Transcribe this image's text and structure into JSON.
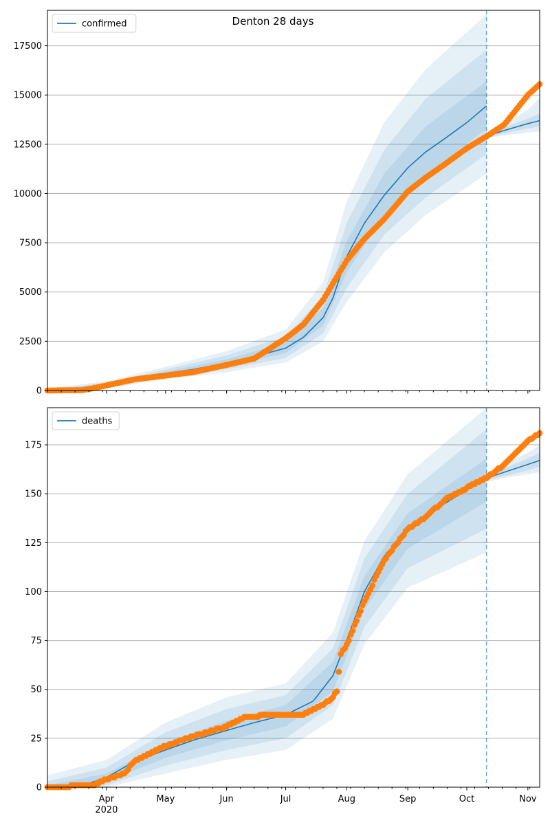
{
  "title": "Denton 28 days",
  "colors": {
    "model": "#1f77b4",
    "observed": "#ff7f0e",
    "band": "#1f77b4",
    "grid": "#b0b0b0"
  },
  "chart_data": [
    {
      "type": "line",
      "panel": "confirmed",
      "legend": "confirmed",
      "legend_position": "top-left",
      "x_axis": "date",
      "xlim": [
        "2020-03-02",
        "2020-11-07"
      ],
      "forecast_start": "2020-10-11",
      "month_ticks": [
        {
          "date": "2020-04-01",
          "label": "Apr",
          "sublabel": "2020"
        },
        {
          "date": "2020-05-01",
          "label": "May"
        },
        {
          "date": "2020-06-01",
          "label": "Jun"
        },
        {
          "date": "2020-07-01",
          "label": "Jul"
        },
        {
          "date": "2020-08-01",
          "label": "Aug"
        },
        {
          "date": "2020-09-01",
          "label": "Sep"
        },
        {
          "date": "2020-10-01",
          "label": "Oct"
        },
        {
          "date": "2020-11-01",
          "label": "Nov"
        }
      ],
      "ylim": [
        0,
        19300
      ],
      "yticks": [
        0,
        2500,
        5000,
        7500,
        10000,
        12500,
        15000,
        17500
      ],
      "grid": "horizontal",
      "model_fit": [
        [
          "2020-03-02",
          0
        ],
        [
          "2020-03-15",
          20
        ],
        [
          "2020-03-25",
          100
        ],
        [
          "2020-04-01",
          280
        ],
        [
          "2020-04-15",
          580
        ],
        [
          "2020-05-01",
          870
        ],
        [
          "2020-05-15",
          1070
        ],
        [
          "2020-06-01",
          1400
        ],
        [
          "2020-06-15",
          1720
        ],
        [
          "2020-07-01",
          2150
        ],
        [
          "2020-07-10",
          2700
        ],
        [
          "2020-07-20",
          3700
        ],
        [
          "2020-07-25",
          4700
        ],
        [
          "2020-08-01",
          6800
        ],
        [
          "2020-08-10",
          8500
        ],
        [
          "2020-08-20",
          9900
        ],
        [
          "2020-09-01",
          11300
        ],
        [
          "2020-09-10",
          12100
        ],
        [
          "2020-09-20",
          12800
        ],
        [
          "2020-10-01",
          13600
        ],
        [
          "2020-10-11",
          14450
        ]
      ],
      "fit_band_inner": {
        "upper": [
          [
            "2020-03-02",
            30
          ],
          [
            "2020-04-01",
            330
          ],
          [
            "2020-05-01",
            960
          ],
          [
            "2020-06-01",
            1580
          ],
          [
            "2020-07-01",
            2430
          ],
          [
            "2020-07-20",
            4200
          ],
          [
            "2020-08-01",
            7600
          ],
          [
            "2020-08-20",
            11000
          ],
          [
            "2020-09-10",
            13400
          ],
          [
            "2020-10-11",
            15700
          ]
        ],
        "lower": [
          [
            "2020-03-02",
            0
          ],
          [
            "2020-04-01",
            230
          ],
          [
            "2020-05-01",
            780
          ],
          [
            "2020-06-01",
            1240
          ],
          [
            "2020-07-01",
            1900
          ],
          [
            "2020-07-20",
            3300
          ],
          [
            "2020-08-01",
            6000
          ],
          [
            "2020-08-20",
            8900
          ],
          [
            "2020-09-10",
            10900
          ],
          [
            "2020-10-11",
            13300
          ]
        ]
      },
      "fit_band_mid": {
        "upper": [
          [
            "2020-03-02",
            60
          ],
          [
            "2020-04-01",
            390
          ],
          [
            "2020-05-01",
            1070
          ],
          [
            "2020-06-01",
            1780
          ],
          [
            "2020-07-01",
            2750
          ],
          [
            "2020-07-20",
            4800
          ],
          [
            "2020-08-01",
            8500
          ],
          [
            "2020-08-20",
            12200
          ],
          [
            "2020-09-10",
            14800
          ],
          [
            "2020-10-11",
            17300
          ]
        ],
        "lower": [
          [
            "2020-03-02",
            0
          ],
          [
            "2020-04-01",
            180
          ],
          [
            "2020-05-01",
            680
          ],
          [
            "2020-06-01",
            1080
          ],
          [
            "2020-07-01",
            1650
          ],
          [
            "2020-07-20",
            2900
          ],
          [
            "2020-08-01",
            5200
          ],
          [
            "2020-08-20",
            7900
          ],
          [
            "2020-09-10",
            9800
          ],
          [
            "2020-10-11",
            12000
          ]
        ]
      },
      "fit_band_outer": {
        "upper": [
          [
            "2020-03-02",
            100
          ],
          [
            "2020-04-01",
            470
          ],
          [
            "2020-05-01",
            1200
          ],
          [
            "2020-06-01",
            2000
          ],
          [
            "2020-07-01",
            3100
          ],
          [
            "2020-07-20",
            5500
          ],
          [
            "2020-08-01",
            9600
          ],
          [
            "2020-08-20",
            13600
          ],
          [
            "2020-09-10",
            16300
          ],
          [
            "2020-10-11",
            19100
          ]
        ],
        "lower": [
          [
            "2020-03-02",
            0
          ],
          [
            "2020-04-01",
            120
          ],
          [
            "2020-05-01",
            580
          ],
          [
            "2020-06-01",
            930
          ],
          [
            "2020-07-01",
            1420
          ],
          [
            "2020-07-20",
            2500
          ],
          [
            "2020-08-01",
            4500
          ],
          [
            "2020-08-20",
            7000
          ],
          [
            "2020-09-10",
            8900
          ],
          [
            "2020-10-11",
            11000
          ]
        ]
      },
      "forecast": [
        [
          "2020-10-11",
          12900
        ],
        [
          "2020-10-20",
          13200
        ],
        [
          "2020-11-01",
          13550
        ],
        [
          "2020-11-07",
          13700
        ]
      ],
      "forecast_band_inner": {
        "upper": [
          [
            "2020-10-11",
            12950
          ],
          [
            "2020-10-20",
            13350
          ],
          [
            "2020-11-01",
            13800
          ],
          [
            "2020-11-07",
            14050
          ]
        ],
        "lower": [
          [
            "2020-10-11",
            12850
          ],
          [
            "2020-10-20",
            13050
          ],
          [
            "2020-11-01",
            13300
          ],
          [
            "2020-11-07",
            13400
          ]
        ]
      },
      "forecast_band_outer": {
        "upper": [
          [
            "2020-10-11",
            13000
          ],
          [
            "2020-10-20",
            13550
          ],
          [
            "2020-11-01",
            14250
          ],
          [
            "2020-11-07",
            14850
          ]
        ],
        "lower": [
          [
            "2020-10-11",
            12800
          ],
          [
            "2020-10-20",
            12950
          ],
          [
            "2020-11-01",
            13100
          ],
          [
            "2020-11-07",
            13150
          ]
        ]
      },
      "observed_anchors": [
        [
          "2020-03-02",
          0
        ],
        [
          "2020-03-20",
          20
        ],
        [
          "2020-03-25",
          110
        ],
        [
          "2020-04-01",
          260
        ],
        [
          "2020-04-15",
          560
        ],
        [
          "2020-05-01",
          760
        ],
        [
          "2020-05-15",
          930
        ],
        [
          "2020-06-01",
          1300
        ],
        [
          "2020-06-15",
          1620
        ],
        [
          "2020-07-01",
          2650
        ],
        [
          "2020-07-10",
          3350
        ],
        [
          "2020-07-20",
          4600
        ],
        [
          "2020-08-01",
          6600
        ],
        [
          "2020-08-10",
          7700
        ],
        [
          "2020-08-20",
          8700
        ],
        [
          "2020-09-01",
          10100
        ],
        [
          "2020-09-10",
          10800
        ],
        [
          "2020-09-20",
          11500
        ],
        [
          "2020-10-01",
          12300
        ],
        [
          "2020-10-11",
          12900
        ],
        [
          "2020-10-20",
          13500
        ],
        [
          "2020-11-01",
          15000
        ],
        [
          "2020-11-07",
          15550
        ]
      ]
    },
    {
      "type": "line",
      "panel": "deaths",
      "legend": "deaths",
      "legend_position": "top-left",
      "x_axis": "date",
      "xlim": [
        "2020-03-02",
        "2020-11-07"
      ],
      "forecast_start": "2020-10-11",
      "month_ticks": [
        {
          "date": "2020-04-01",
          "label": "Apr",
          "sublabel": "2020"
        },
        {
          "date": "2020-05-01",
          "label": "May"
        },
        {
          "date": "2020-06-01",
          "label": "Jun"
        },
        {
          "date": "2020-07-01",
          "label": "Jul"
        },
        {
          "date": "2020-08-01",
          "label": "Aug"
        },
        {
          "date": "2020-09-01",
          "label": "Sep"
        },
        {
          "date": "2020-10-01",
          "label": "Oct"
        },
        {
          "date": "2020-11-01",
          "label": "Nov"
        }
      ],
      "ylim": [
        0,
        194
      ],
      "yticks": [
        0,
        25,
        50,
        75,
        100,
        125,
        150,
        175
      ],
      "grid": "horizontal",
      "model_fit": [
        [
          "2020-03-02",
          0
        ],
        [
          "2020-03-20",
          1
        ],
        [
          "2020-04-01",
          5
        ],
        [
          "2020-04-15",
          13
        ],
        [
          "2020-05-01",
          19
        ],
        [
          "2020-05-15",
          24
        ],
        [
          "2020-06-01",
          29
        ],
        [
          "2020-06-15",
          33
        ],
        [
          "2020-07-01",
          37
        ],
        [
          "2020-07-15",
          44
        ],
        [
          "2020-07-25",
          57
        ],
        [
          "2020-08-01",
          75
        ],
        [
          "2020-08-10",
          100
        ],
        [
          "2020-08-20",
          118
        ],
        [
          "2020-09-01",
          131
        ],
        [
          "2020-09-15",
          142
        ],
        [
          "2020-10-01",
          152
        ],
        [
          "2020-10-11",
          157
        ]
      ],
      "fit_band_inner": {
        "upper": [
          [
            "2020-03-02",
            1
          ],
          [
            "2020-04-01",
            7
          ],
          [
            "2020-05-01",
            23
          ],
          [
            "2020-06-01",
            34
          ],
          [
            "2020-07-01",
            42
          ],
          [
            "2020-07-25",
            64
          ],
          [
            "2020-08-10",
            108
          ],
          [
            "2020-09-01",
            140
          ],
          [
            "2020-10-11",
            168
          ]
        ],
        "lower": [
          [
            "2020-03-02",
            0
          ],
          [
            "2020-04-01",
            3
          ],
          [
            "2020-05-01",
            15
          ],
          [
            "2020-06-01",
            24
          ],
          [
            "2020-07-01",
            31
          ],
          [
            "2020-07-25",
            49
          ],
          [
            "2020-08-10",
            91
          ],
          [
            "2020-09-01",
            122
          ],
          [
            "2020-10-11",
            146
          ]
        ]
      },
      "fit_band_mid": {
        "upper": [
          [
            "2020-03-02",
            3
          ],
          [
            "2020-04-01",
            10
          ],
          [
            "2020-05-01",
            28
          ],
          [
            "2020-06-01",
            40
          ],
          [
            "2020-07-01",
            47
          ],
          [
            "2020-07-25",
            71
          ],
          [
            "2020-08-10",
            117
          ],
          [
            "2020-09-01",
            150
          ],
          [
            "2020-10-11",
            183
          ]
        ],
        "lower": [
          [
            "2020-03-02",
            0
          ],
          [
            "2020-04-01",
            1
          ],
          [
            "2020-05-01",
            11
          ],
          [
            "2020-06-01",
            19
          ],
          [
            "2020-07-01",
            25
          ],
          [
            "2020-07-25",
            42
          ],
          [
            "2020-08-10",
            82
          ],
          [
            "2020-09-01",
            112
          ],
          [
            "2020-10-11",
            132
          ]
        ]
      },
      "fit_band_outer": {
        "upper": [
          [
            "2020-03-02",
            6
          ],
          [
            "2020-04-01",
            14
          ],
          [
            "2020-05-01",
            33
          ],
          [
            "2020-06-01",
            46
          ],
          [
            "2020-07-01",
            53
          ],
          [
            "2020-07-25",
            79
          ],
          [
            "2020-08-10",
            126
          ],
          [
            "2020-09-01",
            160
          ],
          [
            "2020-10-11",
            194
          ]
        ],
        "lower": [
          [
            "2020-03-02",
            0
          ],
          [
            "2020-04-01",
            0
          ],
          [
            "2020-05-01",
            7
          ],
          [
            "2020-06-01",
            14
          ],
          [
            "2020-07-01",
            19
          ],
          [
            "2020-07-25",
            35
          ],
          [
            "2020-08-10",
            73
          ],
          [
            "2020-09-01",
            102
          ],
          [
            "2020-10-11",
            120
          ]
        ]
      },
      "forecast": [
        [
          "2020-10-11",
          158
        ],
        [
          "2020-10-20",
          161
        ],
        [
          "2020-11-01",
          165
        ],
        [
          "2020-11-07",
          167
        ]
      ],
      "forecast_band_inner": {
        "upper": [
          [
            "2020-10-11",
            159
          ],
          [
            "2020-10-20",
            163
          ],
          [
            "2020-11-01",
            168
          ],
          [
            "2020-11-07",
            171
          ]
        ],
        "lower": [
          [
            "2020-10-11",
            157
          ],
          [
            "2020-10-20",
            159
          ],
          [
            "2020-11-01",
            162
          ],
          [
            "2020-11-07",
            164
          ]
        ]
      },
      "forecast_band_outer": {
        "upper": [
          [
            "2020-10-11",
            160
          ],
          [
            "2020-10-20",
            165
          ],
          [
            "2020-11-01",
            171
          ],
          [
            "2020-11-07",
            175
          ]
        ],
        "lower": [
          [
            "2020-10-11",
            156
          ],
          [
            "2020-10-20",
            158
          ],
          [
            "2020-11-01",
            160
          ],
          [
            "2020-11-07",
            161
          ]
        ]
      },
      "observed_anchors": [
        [
          "2020-03-02",
          0
        ],
        [
          "2020-03-25",
          1
        ],
        [
          "2020-04-01",
          4
        ],
        [
          "2020-04-10",
          7
        ],
        [
          "2020-04-15",
          13
        ],
        [
          "2020-05-01",
          21
        ],
        [
          "2020-05-15",
          26
        ],
        [
          "2020-06-01",
          31
        ],
        [
          "2020-06-10",
          36
        ],
        [
          "2020-06-25",
          37
        ],
        [
          "2020-07-10",
          37
        ],
        [
          "2020-07-15",
          40
        ],
        [
          "2020-07-20",
          42
        ],
        [
          "2020-07-25",
          46
        ],
        [
          "2020-07-27",
          49
        ],
        [
          "2020-07-29",
          68
        ],
        [
          "2020-08-01",
          73
        ],
        [
          "2020-08-10",
          95
        ],
        [
          "2020-08-20",
          116
        ],
        [
          "2020-09-01",
          132
        ],
        [
          "2020-09-10",
          138
        ],
        [
          "2020-09-20",
          147
        ],
        [
          "2020-10-01",
          153
        ],
        [
          "2020-10-11",
          158
        ],
        [
          "2020-10-20",
          165
        ],
        [
          "2020-11-01",
          177
        ],
        [
          "2020-11-07",
          181
        ]
      ]
    }
  ]
}
